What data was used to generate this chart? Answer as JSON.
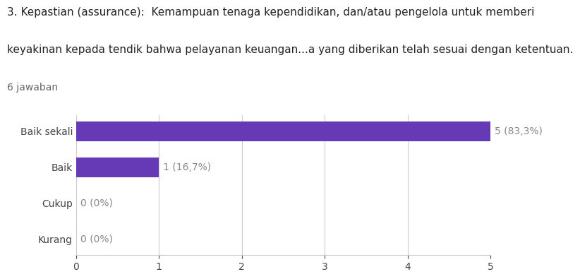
{
  "title_line1": "3. Kepastian (assurance):  Kemampuan tenaga kependidikan, dan/atau pengelola untuk memberi",
  "title_line2": "keyakinan kepada tendik bahwa pelayanan keuangan...a yang diberikan telah sesuai dengan ketentuan.",
  "subtitle": "6 jawaban",
  "categories": [
    "Baik sekali",
    "Baik",
    "Cukup",
    "Kurang"
  ],
  "values": [
    5,
    1,
    0,
    0
  ],
  "labels": [
    "5 (83,3%)",
    "1 (16,7%)",
    "0 (0%)",
    "0 (0%)"
  ],
  "bar_color": "#6639b7",
  "background_color": "#ffffff",
  "xlim": [
    0,
    5
  ],
  "xticks": [
    0,
    1,
    2,
    3,
    4,
    5
  ],
  "title_fontsize": 11.0,
  "subtitle_fontsize": 10.0,
  "tick_fontsize": 10,
  "label_fontsize": 10,
  "category_fontsize": 10
}
